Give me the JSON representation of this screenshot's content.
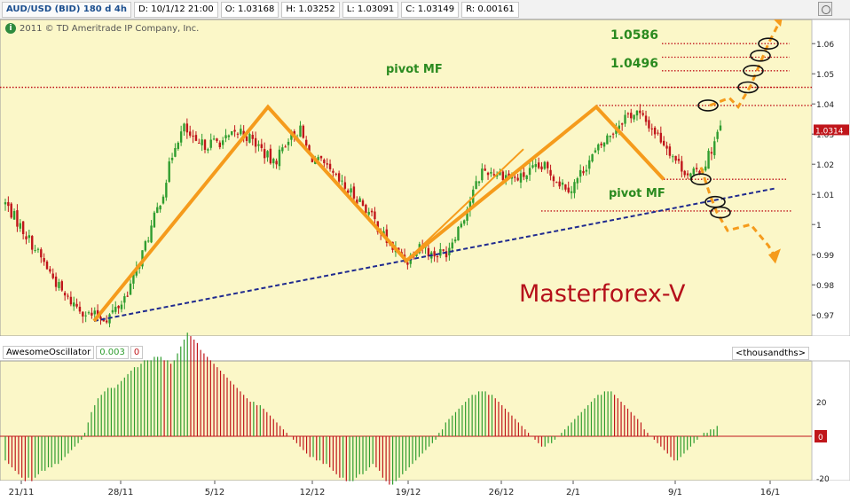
{
  "header": {
    "symbol": "AUD/USD (BID) 180 d 4h",
    "date": "D: 10/1/12 21:00",
    "open": "O: 1.03168",
    "high": "H: 1.03252",
    "low": "L: 1.03091",
    "close": "C: 1.03149",
    "range": "R: 0.00161"
  },
  "copyright": "2011 © TD Ameritrade IP Company, Inc.",
  "icons": {
    "info": "info-icon",
    "settings": "settings-icon"
  },
  "watermark": "Masterforex-V",
  "annotations": {
    "pivot_upper": "pivot MF",
    "pivot_lower": "pivot MF",
    "target_1": "1.0586",
    "target_2": "1.0496"
  },
  "current_price_label": "1.0314",
  "oscillator": {
    "name": "AwesomeOscillator",
    "value": "0.003",
    "value2": "0",
    "units": "<thousandths>",
    "zero_label": "0",
    "ticks": [
      "20",
      "-20"
    ]
  },
  "colors": {
    "background": "#fbf7c8",
    "bull": "#2f9d2f",
    "bear": "#c0161b",
    "orange": "#f59b1c",
    "trendline": "#1f2a8f",
    "pivot": "#c0161b",
    "annotation_text": "#2a8a1f",
    "watermark": "#b5101a"
  },
  "chart_data": {
    "type": "candlestick",
    "price_axis": {
      "min": 0.963,
      "max": 1.068,
      "ticks": [
        "1.06",
        "1.05",
        "1.04",
        "1.03",
        "1.02",
        "1.01",
        "1",
        "0.99",
        "0.98",
        "0.97"
      ]
    },
    "x_axis_labels": [
      "21/11",
      "28/11",
      "5/12",
      "12/12",
      "19/12",
      "26/12",
      "2/1",
      "9/1",
      "16/1"
    ],
    "price_path": [
      [
        0,
        1.007
      ],
      [
        10,
        0.992
      ],
      [
        20,
        0.976
      ],
      [
        28,
        0.97
      ],
      [
        34,
        0.969
      ],
      [
        39,
        0.974
      ],
      [
        43,
        0.982
      ],
      [
        48,
        0.996
      ],
      [
        53,
        1.011
      ],
      [
        57,
        1.027
      ],
      [
        60,
        1.032
      ],
      [
        64,
        1.026
      ],
      [
        69,
        1.027
      ],
      [
        74,
        1.028
      ],
      [
        79,
        1.031
      ],
      [
        85,
        1.026
      ],
      [
        90,
        1.02
      ],
      [
        95,
        1.029
      ],
      [
        99,
        1.031
      ],
      [
        102,
        1.023
      ],
      [
        106,
        1.02
      ],
      [
        110,
        1.016
      ],
      [
        114,
        1.012
      ],
      [
        119,
        1.008
      ],
      [
        124,
        1.001
      ],
      [
        129,
        0.993
      ],
      [
        135,
        0.988
      ],
      [
        139,
        0.994
      ],
      [
        143,
        0.99
      ],
      [
        148,
        0.991
      ],
      [
        154,
        1.003
      ],
      [
        160,
        1.018
      ],
      [
        166,
        1.017
      ],
      [
        172,
        1.015
      ],
      [
        177,
        1.018
      ],
      [
        181,
        1.019
      ],
      [
        186,
        1.014
      ],
      [
        190,
        1.012
      ],
      [
        195,
        1.02
      ],
      [
        199,
        1.025
      ],
      [
        203,
        1.03
      ],
      [
        208,
        1.036
      ],
      [
        212,
        1.037
      ],
      [
        217,
        1.032
      ],
      [
        222,
        1.026
      ],
      [
        226,
        1.02
      ],
      [
        230,
        1.016
      ],
      [
        234,
        1.019
      ],
      [
        237,
        1.025
      ],
      [
        240,
        1.032
      ]
    ],
    "orange_zigzag": [
      [
        0,
        0.968
      ],
      [
        57,
        1.039
      ],
      [
        118,
        0.988
      ],
      [
        162,
        1.039
      ],
      [
        184,
        1.015
      ]
    ],
    "trendline": {
      "x": [
        0,
        240
      ],
      "y": [
        0.968,
        1.012
      ]
    },
    "pivots": [
      1.0455,
      1.0395,
      1.015,
      1.0045
    ],
    "targets": [
      1.06,
      1.0555,
      1.051,
      1.0455
    ],
    "awesome_oscillator": [
      -7,
      -8,
      -9,
      -10,
      -11,
      -12,
      -13,
      -12,
      -13,
      -12,
      -11,
      -10,
      -10,
      -9,
      -9,
      -8,
      -8,
      -7,
      -6,
      -5,
      -4,
      -3,
      -2,
      -1,
      1,
      4,
      7,
      9,
      11,
      12,
      13,
      14,
      14,
      14,
      15,
      16,
      17,
      18,
      19,
      20,
      20,
      21,
      22,
      22,
      22,
      23,
      23,
      23,
      22,
      22,
      21,
      22,
      24,
      26,
      28,
      30,
      29,
      28,
      27,
      25,
      24,
      23,
      22,
      21,
      20,
      19,
      18,
      17,
      16,
      15,
      14,
      13,
      12,
      11,
      10,
      10,
      9,
      9,
      8,
      7,
      6,
      5,
      4,
      3,
      2,
      1,
      0,
      -1,
      -2,
      -3,
      -4,
      -5,
      -6,
      -6,
      -7,
      -7,
      -8,
      -8,
      -9,
      -10,
      -11,
      -12,
      -12,
      -13,
      -13,
      -13,
      -12,
      -11,
      -11,
      -10,
      -9,
      -8,
      -9,
      -10,
      -12,
      -13,
      -14,
      -14,
      -13,
      -12,
      -11,
      -10,
      -9,
      -8,
      -7,
      -6,
      -5,
      -4,
      -3,
      -2,
      -1,
      1,
      2,
      4,
      5,
      6,
      7,
      8,
      9,
      10,
      11,
      12,
      12,
      13,
      13,
      13,
      12,
      12,
      11,
      10,
      9,
      8,
      7,
      6,
      5,
      4,
      3,
      2,
      1,
      0,
      -1,
      -2,
      -3,
      -3,
      -2,
      -2,
      -1,
      0,
      1,
      2,
      3,
      4,
      5,
      6,
      7,
      8,
      9,
      10,
      11,
      12,
      12,
      13,
      13,
      13,
      12,
      11,
      10,
      9,
      8,
      7,
      6,
      5,
      4,
      2,
      1,
      0,
      -1,
      -2,
      -3,
      -4,
      -5,
      -6,
      -7,
      -7,
      -6,
      -5,
      -4,
      -3,
      -2,
      -1,
      0,
      1,
      1,
      2,
      2,
      3
    ]
  }
}
